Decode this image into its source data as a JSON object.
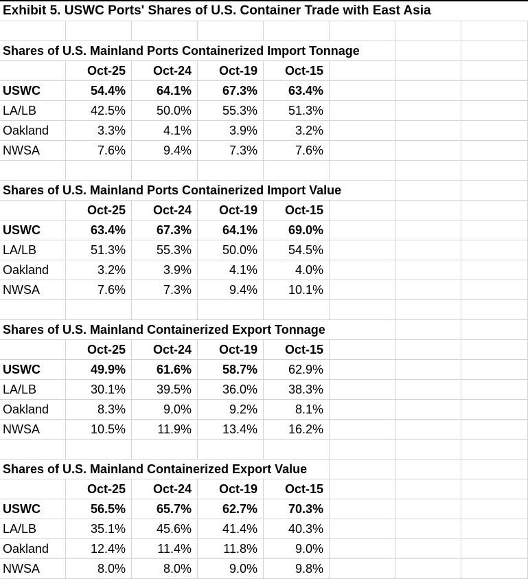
{
  "exhibit_title": "Exhibit 5. USWC Ports' Shares of U.S. Container Trade with East Asia",
  "columns": [
    "Oct-25",
    "Oct-24",
    "Oct-19",
    "Oct-15"
  ],
  "colors": {
    "background": "#ffffff",
    "gridline": "#d4d4d4",
    "text": "#000000",
    "top_border": "#000000"
  },
  "tables": [
    {
      "title": "Shares of U.S. Mainland Ports Containerized Import Tonnage",
      "rows": [
        {
          "label": "USWC",
          "values": [
            "54.4%",
            "64.1%",
            "67.3%",
            "63.4%"
          ],
          "bold": [
            true,
            true,
            true,
            true
          ]
        },
        {
          "label": "LA/LB",
          "values": [
            "42.5%",
            "50.0%",
            "55.3%",
            "51.3%"
          ],
          "bold": [
            false,
            false,
            false,
            false
          ]
        },
        {
          "label": "Oakland",
          "values": [
            "3.3%",
            "4.1%",
            "3.9%",
            "3.2%"
          ],
          "bold": [
            false,
            false,
            false,
            false
          ]
        },
        {
          "label": "NWSA",
          "values": [
            "7.6%",
            "9.4%",
            "7.3%",
            "7.6%"
          ],
          "bold": [
            false,
            false,
            false,
            false
          ]
        }
      ]
    },
    {
      "title": "Shares of U.S. Mainland Ports Containerized Import Value",
      "rows": [
        {
          "label": "USWC",
          "values": [
            "63.4%",
            "67.3%",
            "64.1%",
            "69.0%"
          ],
          "bold": [
            true,
            true,
            true,
            true
          ]
        },
        {
          "label": "LA/LB",
          "values": [
            "51.3%",
            "55.3%",
            "50.0%",
            "54.5%"
          ],
          "bold": [
            false,
            false,
            false,
            false
          ]
        },
        {
          "label": "Oakland",
          "values": [
            "3.2%",
            "3.9%",
            "4.1%",
            "4.0%"
          ],
          "bold": [
            false,
            false,
            false,
            false
          ]
        },
        {
          "label": "NWSA",
          "values": [
            "7.6%",
            "7.3%",
            "9.4%",
            "10.1%"
          ],
          "bold": [
            false,
            false,
            false,
            false
          ]
        }
      ]
    },
    {
      "title": "Shares of U.S. Mainland Containerized Export Tonnage",
      "rows": [
        {
          "label": "USWC",
          "values": [
            "49.9%",
            "61.6%",
            "58.7%",
            "62.9%"
          ],
          "bold": [
            true,
            true,
            true,
            false
          ]
        },
        {
          "label": "LA/LB",
          "values": [
            "30.1%",
            "39.5%",
            "36.0%",
            "38.3%"
          ],
          "bold": [
            false,
            false,
            false,
            false
          ]
        },
        {
          "label": "Oakland",
          "values": [
            "8.3%",
            "9.0%",
            "9.2%",
            "8.1%"
          ],
          "bold": [
            false,
            false,
            false,
            false
          ]
        },
        {
          "label": "NWSA",
          "values": [
            "10.5%",
            "11.9%",
            "13.4%",
            "16.2%"
          ],
          "bold": [
            false,
            false,
            false,
            false
          ]
        }
      ]
    },
    {
      "title": "Shares of U.S. Mainland Containerized Export Value",
      "rows": [
        {
          "label": "USWC",
          "values": [
            "56.5%",
            "65.7%",
            "62.7%",
            "70.3%"
          ],
          "bold": [
            true,
            true,
            true,
            true
          ]
        },
        {
          "label": "LA/LB",
          "values": [
            "35.1%",
            "45.6%",
            "41.4%",
            "40.3%"
          ],
          "bold": [
            false,
            false,
            false,
            false
          ]
        },
        {
          "label": "Oakland",
          "values": [
            "12.4%",
            "11.4%",
            "11.8%",
            "9.0%"
          ],
          "bold": [
            false,
            false,
            false,
            false
          ]
        },
        {
          "label": "NWSA",
          "values": [
            "8.0%",
            "8.0%",
            "9.0%",
            "9.8%"
          ],
          "bold": [
            false,
            false,
            false,
            false
          ]
        }
      ]
    }
  ]
}
